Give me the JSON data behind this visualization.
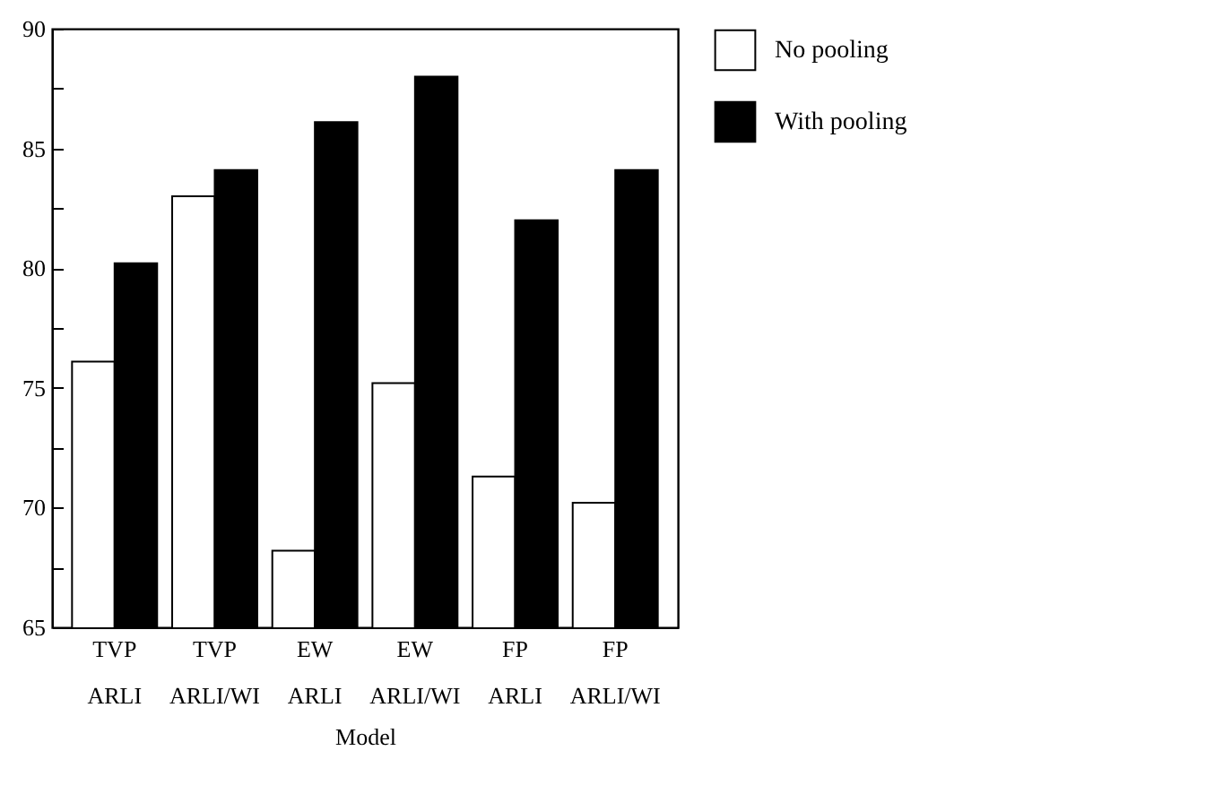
{
  "chart_data": {
    "type": "bar",
    "xlabel": "Model",
    "categories": [
      "TVP\nARLI",
      "TVP\nARLI/WI",
      "EW\nARLI",
      "EW\nARLI/WI",
      "FP\nARLI",
      "FP\nARLI/WI"
    ],
    "series": [
      {
        "name": "No pooling",
        "color": "#ffffff",
        "values": [
          76.1,
          83.0,
          68.2,
          75.2,
          71.3,
          70.2
        ]
      },
      {
        "name": "With pooling",
        "color": "#000000",
        "values": [
          80.2,
          84.1,
          86.1,
          88.0,
          82.0,
          84.1
        ]
      }
    ],
    "ylim": [
      65,
      90
    ],
    "yticks": [
      65,
      {
        "value": 67.5,
        "label": null
      },
      70,
      {
        "value": 72.5,
        "label": null
      },
      75,
      {
        "value": 77.5,
        "label": null
      },
      80,
      {
        "value": 82.5,
        "label": null
      },
      85,
      {
        "value": 87.5,
        "label": null
      },
      90
    ],
    "grid": false,
    "legend": "top right"
  }
}
